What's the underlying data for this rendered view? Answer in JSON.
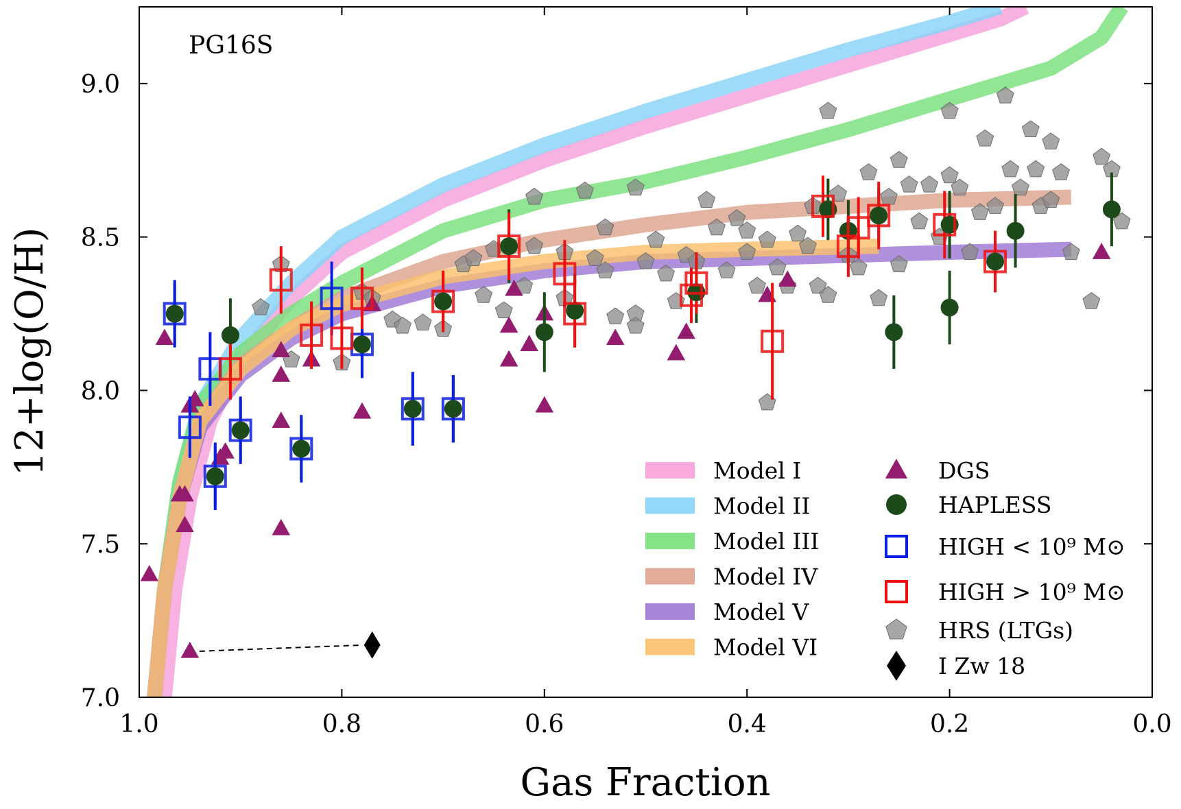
{
  "chart_data": {
    "type": "scatter",
    "annotation": "PG16S",
    "xlabel": "Gas Fraction",
    "ylabel": "12+log(O/H)",
    "xlim": [
      1.0,
      0.0
    ],
    "ylim": [
      7.0,
      9.25
    ],
    "x_ticks": [
      1.0,
      0.8,
      0.6,
      0.4,
      0.2,
      0.0
    ],
    "x_tick_labels": [
      "1.0",
      "0.8",
      "0.6",
      "0.4",
      "0.2",
      "0.0"
    ],
    "y_ticks": [
      7.0,
      7.5,
      8.0,
      8.5,
      9.0
    ],
    "y_tick_labels": [
      "7.0",
      "7.5",
      "8.0",
      "8.5",
      "9.0"
    ],
    "models": [
      {
        "name": "Model I",
        "color": "#f7a1dc",
        "points": [
          [
            0.975,
            7.0
          ],
          [
            0.965,
            7.35
          ],
          [
            0.95,
            7.65
          ],
          [
            0.93,
            7.9
          ],
          [
            0.9,
            8.1
          ],
          [
            0.85,
            8.3
          ],
          [
            0.8,
            8.45
          ],
          [
            0.7,
            8.62
          ],
          [
            0.6,
            8.75
          ],
          [
            0.5,
            8.86
          ],
          [
            0.4,
            8.96
          ],
          [
            0.3,
            9.06
          ],
          [
            0.2,
            9.16
          ],
          [
            0.15,
            9.21
          ],
          [
            0.125,
            9.25
          ]
        ]
      },
      {
        "name": "Model II",
        "color": "#87d3f8",
        "points": [
          [
            0.985,
            7.0
          ],
          [
            0.975,
            7.35
          ],
          [
            0.96,
            7.7
          ],
          [
            0.94,
            7.95
          ],
          [
            0.9,
            8.17
          ],
          [
            0.85,
            8.35
          ],
          [
            0.8,
            8.5
          ],
          [
            0.7,
            8.67
          ],
          [
            0.6,
            8.8
          ],
          [
            0.5,
            8.91
          ],
          [
            0.4,
            9.01
          ],
          [
            0.3,
            9.11
          ],
          [
            0.2,
            9.2
          ],
          [
            0.15,
            9.25
          ]
        ]
      },
      {
        "name": "Model III",
        "color": "#77e07a",
        "points": [
          [
            0.985,
            7.0
          ],
          [
            0.975,
            7.35
          ],
          [
            0.96,
            7.7
          ],
          [
            0.94,
            7.95
          ],
          [
            0.9,
            8.12
          ],
          [
            0.85,
            8.25
          ],
          [
            0.8,
            8.35
          ],
          [
            0.7,
            8.52
          ],
          [
            0.6,
            8.62
          ],
          [
            0.5,
            8.68
          ],
          [
            0.4,
            8.76
          ],
          [
            0.3,
            8.85
          ],
          [
            0.2,
            8.95
          ],
          [
            0.1,
            9.05
          ],
          [
            0.05,
            9.15
          ],
          [
            0.04,
            9.2
          ],
          [
            0.03,
            9.25
          ]
        ]
      },
      {
        "name": "Model IV",
        "color": "#dea38e",
        "points": [
          [
            0.985,
            7.0
          ],
          [
            0.975,
            7.35
          ],
          [
            0.96,
            7.65
          ],
          [
            0.94,
            7.9
          ],
          [
            0.9,
            8.08
          ],
          [
            0.85,
            8.2
          ],
          [
            0.8,
            8.3
          ],
          [
            0.7,
            8.42
          ],
          [
            0.6,
            8.49
          ],
          [
            0.5,
            8.54
          ],
          [
            0.4,
            8.58
          ],
          [
            0.3,
            8.6
          ],
          [
            0.2,
            8.62
          ],
          [
            0.08,
            8.63
          ]
        ]
      },
      {
        "name": "Model V",
        "color": "#9c78d4",
        "points": [
          [
            0.985,
            7.0
          ],
          [
            0.975,
            7.35
          ],
          [
            0.96,
            7.65
          ],
          [
            0.94,
            7.88
          ],
          [
            0.9,
            8.05
          ],
          [
            0.85,
            8.17
          ],
          [
            0.8,
            8.25
          ],
          [
            0.7,
            8.34
          ],
          [
            0.6,
            8.39
          ],
          [
            0.5,
            8.42
          ],
          [
            0.4,
            8.43
          ],
          [
            0.3,
            8.44
          ],
          [
            0.2,
            8.45
          ],
          [
            0.08,
            8.46
          ]
        ]
      },
      {
        "name": "Model VI",
        "color": "#fbbf6c",
        "points": [
          [
            0.985,
            7.0
          ],
          [
            0.975,
            7.35
          ],
          [
            0.96,
            7.65
          ],
          [
            0.94,
            7.9
          ],
          [
            0.9,
            8.07
          ],
          [
            0.85,
            8.2
          ],
          [
            0.8,
            8.28
          ],
          [
            0.7,
            8.37
          ],
          [
            0.6,
            8.42
          ],
          [
            0.5,
            8.45
          ],
          [
            0.4,
            8.46
          ],
          [
            0.27,
            8.47
          ]
        ]
      }
    ],
    "series": [
      {
        "name": "DGS",
        "marker": "triangle",
        "color": "#931c6f",
        "points": [
          [
            0.99,
            7.4
          ],
          [
            0.975,
            8.17
          ],
          [
            0.96,
            7.66
          ],
          [
            0.955,
            7.56
          ],
          [
            0.955,
            7.66
          ],
          [
            0.95,
            7.95
          ],
          [
            0.945,
            7.97
          ],
          [
            0.92,
            7.78
          ],
          [
            0.915,
            7.8
          ],
          [
            0.86,
            7.55
          ],
          [
            0.86,
            7.9
          ],
          [
            0.86,
            8.05
          ],
          [
            0.86,
            8.13
          ],
          [
            0.83,
            8.1
          ],
          [
            0.78,
            7.93
          ],
          [
            0.77,
            8.28
          ],
          [
            0.635,
            8.1
          ],
          [
            0.635,
            8.21
          ],
          [
            0.63,
            8.33
          ],
          [
            0.615,
            8.15
          ],
          [
            0.6,
            7.95
          ],
          [
            0.6,
            8.25
          ],
          [
            0.53,
            8.17
          ],
          [
            0.47,
            8.12
          ],
          [
            0.46,
            8.19
          ],
          [
            0.38,
            8.31
          ],
          [
            0.36,
            8.36
          ],
          [
            0.05,
            8.45
          ],
          [
            0.95,
            7.15
          ]
        ]
      },
      {
        "name": "HAPLESS",
        "marker": "circle",
        "color": "#1d4a1b",
        "points": [
          [
            0.965,
            8.25,
            0.1
          ],
          [
            0.925,
            7.72,
            0.1
          ],
          [
            0.91,
            8.18,
            0.12
          ],
          [
            0.9,
            7.87,
            0.1
          ],
          [
            0.84,
            7.81,
            0.1
          ],
          [
            0.78,
            8.15,
            0.1
          ],
          [
            0.73,
            7.94,
            0.12
          ],
          [
            0.69,
            7.94,
            0.11
          ],
          [
            0.7,
            8.29,
            0.1
          ],
          [
            0.635,
            8.47,
            0.12
          ],
          [
            0.6,
            8.19,
            0.13
          ],
          [
            0.57,
            8.26,
            0.12
          ],
          [
            0.45,
            8.32,
            0.1
          ],
          [
            0.32,
            8.59,
            0.1
          ],
          [
            0.3,
            8.52,
            0.1
          ],
          [
            0.27,
            8.57,
            0.09
          ],
          [
            0.2,
            8.54,
            0.11
          ],
          [
            0.255,
            8.19,
            0.12
          ],
          [
            0.2,
            8.27,
            0.12
          ],
          [
            0.155,
            8.42,
            0.1
          ],
          [
            0.135,
            8.52,
            0.12
          ],
          [
            0.04,
            8.59,
            0.12
          ]
        ]
      },
      {
        "name": "HIGH < 10^9 M_sun",
        "marker": "square",
        "color": "#0a1ee3",
        "points": [
          [
            0.965,
            8.25,
            0.11
          ],
          [
            0.95,
            7.88,
            0.1
          ],
          [
            0.93,
            8.07,
            0.12
          ],
          [
            0.925,
            7.72,
            0.11
          ],
          [
            0.9,
            7.87,
            0.11
          ],
          [
            0.84,
            7.81,
            0.11
          ],
          [
            0.81,
            8.3,
            0.12
          ],
          [
            0.78,
            8.15,
            0.11
          ],
          [
            0.73,
            7.94,
            0.12
          ],
          [
            0.69,
            7.94,
            0.11
          ]
        ]
      },
      {
        "name": "HIGH > 10^9 M_sun",
        "marker": "square",
        "color": "#ee1010",
        "points": [
          [
            0.86,
            8.36,
            0.11
          ],
          [
            0.91,
            8.07,
            0.1
          ],
          [
            0.83,
            8.18,
            0.11
          ],
          [
            0.8,
            8.17,
            0.1
          ],
          [
            0.78,
            8.3,
            0.1
          ],
          [
            0.7,
            8.29,
            0.1
          ],
          [
            0.635,
            8.47,
            0.11
          ],
          [
            0.58,
            8.38,
            0.11
          ],
          [
            0.57,
            8.25,
            0.11
          ],
          [
            0.455,
            8.31,
            0.09
          ],
          [
            0.45,
            8.35,
            0.1
          ],
          [
            0.375,
            8.16,
            0.19
          ],
          [
            0.325,
            8.6,
            0.1
          ],
          [
            0.3,
            8.47,
            0.1
          ],
          [
            0.29,
            8.53,
            0.1
          ],
          [
            0.27,
            8.57,
            0.11
          ],
          [
            0.205,
            8.54,
            0.11
          ],
          [
            0.155,
            8.42,
            0.1
          ]
        ]
      },
      {
        "name": "HRS (LTGs)",
        "marker": "pentagon",
        "color": "#8a8a8a",
        "points": [
          [
            0.86,
            8.41
          ],
          [
            0.88,
            8.27
          ],
          [
            0.85,
            8.1
          ],
          [
            0.8,
            8.09
          ],
          [
            0.78,
            8.32
          ],
          [
            0.77,
            8.3
          ],
          [
            0.75,
            8.23
          ],
          [
            0.74,
            8.21
          ],
          [
            0.72,
            8.22
          ],
          [
            0.7,
            8.2
          ],
          [
            0.68,
            8.41
          ],
          [
            0.67,
            8.43
          ],
          [
            0.66,
            8.31
          ],
          [
            0.65,
            8.46
          ],
          [
            0.64,
            8.26
          ],
          [
            0.62,
            8.34
          ],
          [
            0.61,
            8.47
          ],
          [
            0.61,
            8.63
          ],
          [
            0.58,
            8.3
          ],
          [
            0.58,
            8.45
          ],
          [
            0.56,
            8.65
          ],
          [
            0.55,
            8.43
          ],
          [
            0.54,
            8.53
          ],
          [
            0.54,
            8.39
          ],
          [
            0.53,
            8.24
          ],
          [
            0.51,
            8.25
          ],
          [
            0.51,
            8.21
          ],
          [
            0.51,
            8.66
          ],
          [
            0.5,
            8.42
          ],
          [
            0.49,
            8.49
          ],
          [
            0.48,
            8.38
          ],
          [
            0.47,
            8.29
          ],
          [
            0.46,
            8.44
          ],
          [
            0.45,
            8.42
          ],
          [
            0.44,
            8.62
          ],
          [
            0.43,
            8.53
          ],
          [
            0.42,
            8.39
          ],
          [
            0.41,
            8.56
          ],
          [
            0.4,
            8.45
          ],
          [
            0.4,
            8.52
          ],
          [
            0.39,
            8.34
          ],
          [
            0.38,
            8.49
          ],
          [
            0.37,
            8.4
          ],
          [
            0.36,
            8.34
          ],
          [
            0.35,
            8.51
          ],
          [
            0.34,
            8.47
          ],
          [
            0.335,
            8.6
          ],
          [
            0.33,
            8.34
          ],
          [
            0.32,
            8.31
          ],
          [
            0.32,
            8.91
          ],
          [
            0.31,
            8.64
          ],
          [
            0.3,
            8.44
          ],
          [
            0.29,
            8.4
          ],
          [
            0.28,
            8.71
          ],
          [
            0.27,
            8.3
          ],
          [
            0.26,
            8.63
          ],
          [
            0.25,
            8.75
          ],
          [
            0.25,
            8.41
          ],
          [
            0.24,
            8.67
          ],
          [
            0.23,
            8.55
          ],
          [
            0.22,
            8.67
          ],
          [
            0.21,
            8.5
          ],
          [
            0.2,
            8.7
          ],
          [
            0.2,
            8.91
          ],
          [
            0.19,
            8.66
          ],
          [
            0.18,
            8.45
          ],
          [
            0.17,
            8.58
          ],
          [
            0.165,
            8.82
          ],
          [
            0.155,
            8.6
          ],
          [
            0.145,
            8.96
          ],
          [
            0.14,
            8.72
          ],
          [
            0.13,
            8.66
          ],
          [
            0.12,
            8.85
          ],
          [
            0.115,
            8.72
          ],
          [
            0.11,
            8.6
          ],
          [
            0.1,
            8.81
          ],
          [
            0.1,
            8.62
          ],
          [
            0.09,
            8.71
          ],
          [
            0.08,
            8.45
          ],
          [
            0.06,
            8.29
          ],
          [
            0.05,
            8.76
          ],
          [
            0.04,
            8.72
          ],
          [
            0.03,
            8.55
          ],
          [
            0.38,
            7.96
          ]
        ]
      },
      {
        "name": "I Zw 18",
        "marker": "diamond",
        "color": "#000000",
        "points": [
          [
            0.77,
            7.17
          ]
        ]
      }
    ],
    "connector": {
      "style": "dashed",
      "from": [
        0.95,
        7.15
      ],
      "to": [
        0.77,
        7.17
      ]
    },
    "legend": {
      "placement": "lower-right",
      "entries": [
        {
          "label": "Model I",
          "kind": "band",
          "color": "#f7a1dc"
        },
        {
          "label": "Model II",
          "kind": "band",
          "color": "#87d3f8"
        },
        {
          "label": "Model III",
          "kind": "band",
          "color": "#77e07a"
        },
        {
          "label": "Model IV",
          "kind": "band",
          "color": "#dea38e"
        },
        {
          "label": "Model V",
          "kind": "band",
          "color": "#9c78d4"
        },
        {
          "label": "Model VI",
          "kind": "band",
          "color": "#fbbf6c"
        },
        {
          "label": "DGS",
          "kind": "triangle",
          "color": "#931c6f"
        },
        {
          "label": "HAPLESS",
          "kind": "circle",
          "color": "#1d4a1b"
        },
        {
          "label": "HIGH < 10⁹ M⊙",
          "kind": "square",
          "color": "#0a1ee3"
        },
        {
          "label": "HIGH > 10⁹ M⊙",
          "kind": "square",
          "color": "#ee1010"
        },
        {
          "label": "HRS (LTGs)",
          "kind": "pentagon",
          "color": "#8a8a8a"
        },
        {
          "label": "I Zw 18",
          "kind": "diamond",
          "color": "#000000"
        }
      ]
    }
  }
}
